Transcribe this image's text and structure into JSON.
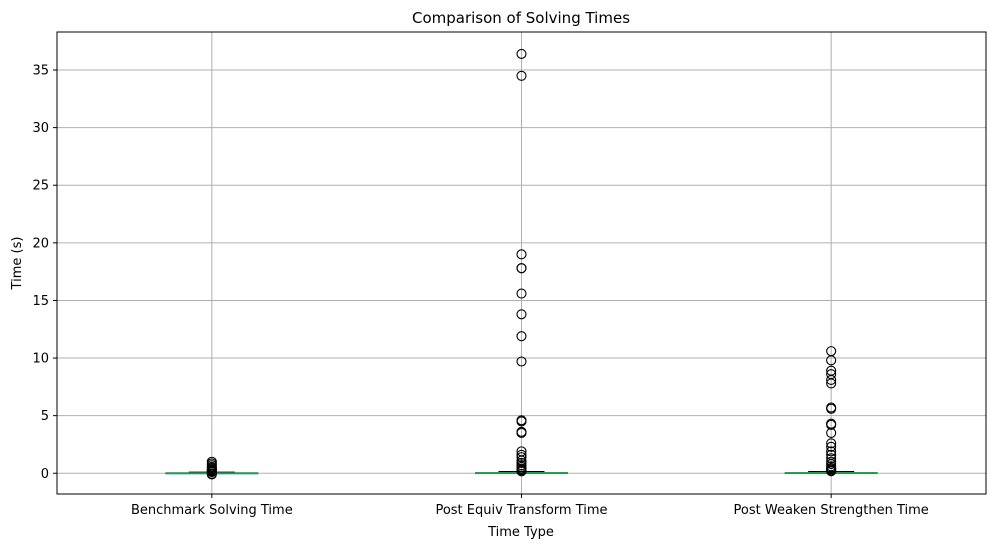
{
  "chart_data": {
    "type": "box",
    "title": "Comparison of Solving Times",
    "xlabel": "Time Type",
    "ylabel": "Time (s)",
    "ylim": [
      -1.8,
      38.3
    ],
    "yticks": [
      0,
      5,
      10,
      15,
      20,
      25,
      30,
      35
    ],
    "grid": true,
    "colors": {
      "box": "#1f77b4",
      "median": "#2ca02c",
      "whisker": "#000000",
      "flier": "#000000",
      "grid": "#b0b0b0"
    },
    "categories": [
      "Benchmark Solving Time",
      "Post Equiv Transform Time",
      "Post Weaken Strengthen Time"
    ],
    "boxes": [
      {
        "q1": 0.0,
        "median": 0.01,
        "q3": 0.04,
        "whisker_low": 0.0,
        "whisker_high": 0.09,
        "outliers": [
          1.0,
          0.85,
          0.7,
          0.55,
          0.45,
          0.35,
          0.28,
          0.22,
          0.17,
          0.13,
          0.1,
          -0.05,
          -0.1
        ]
      },
      {
        "q1": 0.0,
        "median": 0.02,
        "q3": 0.06,
        "whisker_low": 0.0,
        "whisker_high": 0.14,
        "outliers": [
          36.4,
          34.5,
          19.0,
          17.8,
          17.8,
          15.6,
          13.8,
          11.9,
          9.7,
          4.6,
          4.5,
          3.6,
          3.5,
          1.9,
          1.6,
          1.4,
          1.1,
          0.9,
          0.7,
          0.55,
          0.4,
          0.3,
          0.22,
          0.17
        ]
      },
      {
        "q1": 0.0,
        "median": 0.02,
        "q3": 0.06,
        "whisker_low": 0.0,
        "whisker_high": 0.14,
        "outliers": [
          10.6,
          9.8,
          8.9,
          8.6,
          8.1,
          7.8,
          5.7,
          5.6,
          4.3,
          4.2,
          3.5,
          2.6,
          2.3,
          1.9,
          1.6,
          1.3,
          1.0,
          0.8,
          0.6,
          0.45,
          0.35,
          0.25,
          0.18
        ]
      }
    ]
  }
}
